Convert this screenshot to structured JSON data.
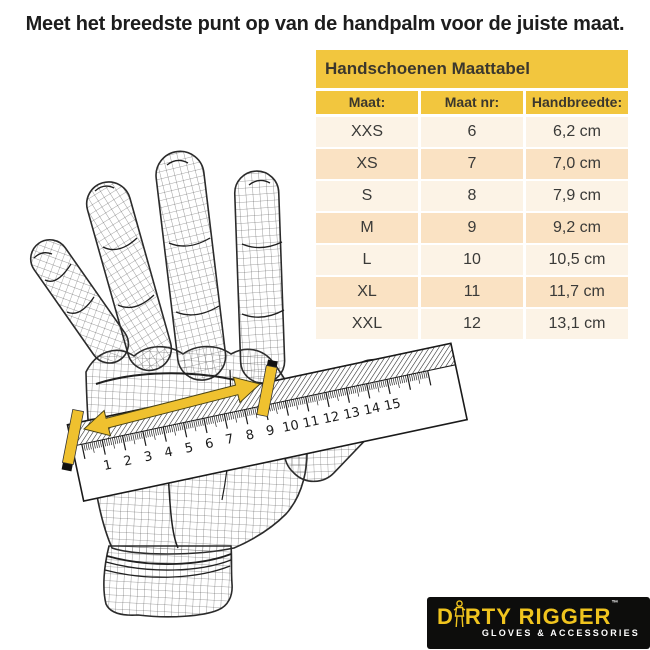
{
  "page": {
    "instruction": "Meet het breedste punt op van de handpalm voor de juiste maat."
  },
  "size_table": {
    "title": "Handschoenen Maattabel",
    "columns": [
      "Maat:",
      "Maat nr:",
      "Handbreedte:"
    ],
    "rows": [
      [
        "XXS",
        "6",
        "6,2 cm"
      ],
      [
        "XS",
        "7",
        "7,0 cm"
      ],
      [
        "S",
        "8",
        "7,9 cm"
      ],
      [
        "M",
        "9",
        "9,2 cm"
      ],
      [
        "L",
        "10",
        "10,5 cm"
      ],
      [
        "XL",
        "11",
        "11,7 cm"
      ],
      [
        "XXL",
        "12",
        "13,1 cm"
      ]
    ],
    "colors": {
      "header_yellow": "#F2C63E",
      "row_light": "#FCF3E6",
      "row_peach": "#FAE2C3",
      "text": "#3a3a38"
    }
  },
  "ruler": {
    "numbers": [
      1,
      2,
      3,
      4,
      5,
      6,
      7,
      8,
      9,
      10,
      11,
      12,
      13,
      14,
      15
    ]
  },
  "measurement": {
    "arrow_color": "#EFC12F"
  },
  "logo": {
    "brand_left": "D",
    "brand_right": "RTY RIGGER",
    "trademark": "™",
    "tagline": "GLOVES & ACCESSORIES",
    "colors": {
      "background": "#0D0D0C",
      "brand": "#F0C41E"
    }
  }
}
